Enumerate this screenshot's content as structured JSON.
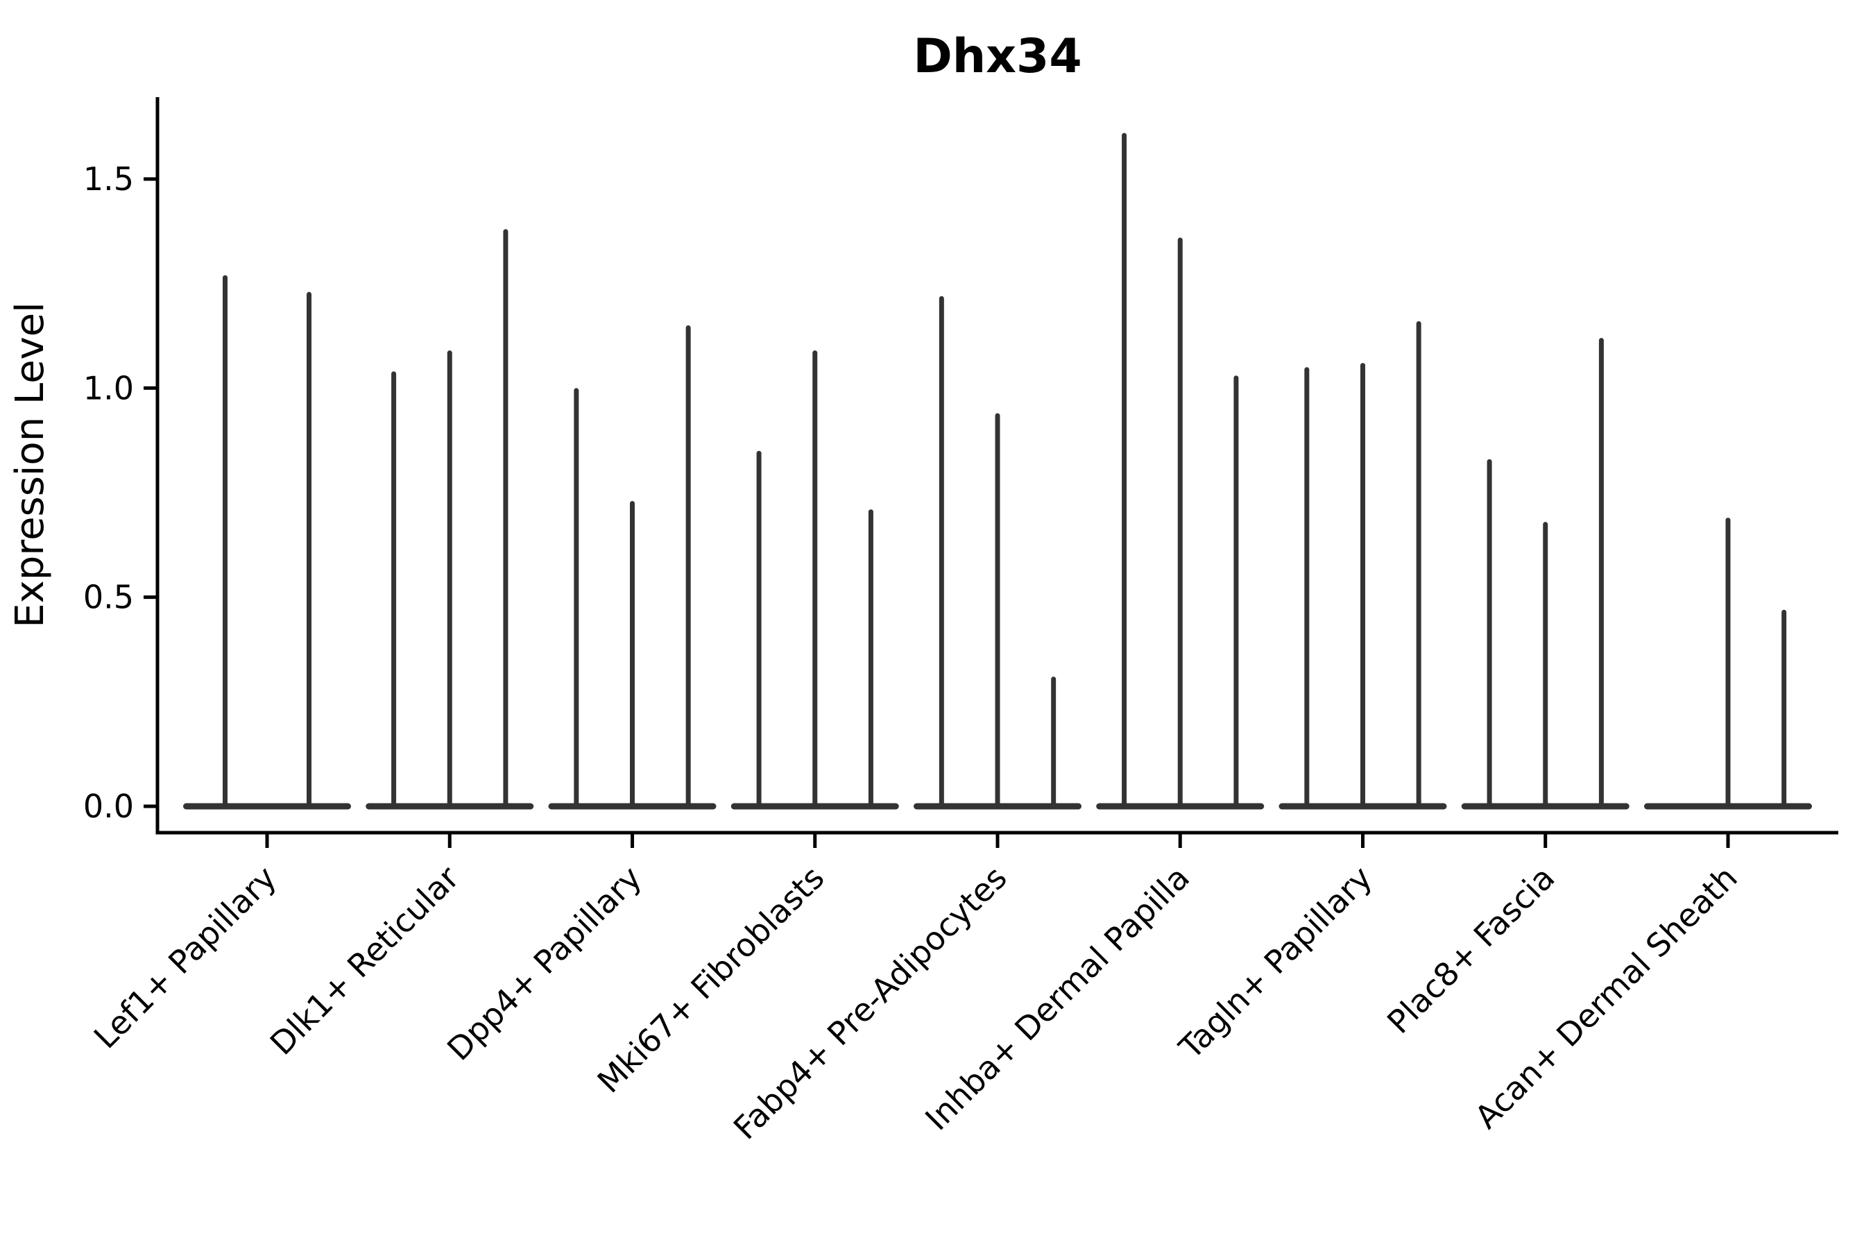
{
  "chart_data": {
    "type": "violin",
    "title": "Dhx34",
    "ylabel": "Expression Level",
    "xlabel": "",
    "ylim": [
      0,
      1.7
    ],
    "yticks": [
      "0.0",
      "0.5",
      "1.0",
      "1.5"
    ],
    "ytick_values": [
      0.0,
      0.5,
      1.0,
      1.5
    ],
    "grid": false,
    "legend": "none",
    "x_tick_rotation_deg": 45,
    "categories": [
      "Lef1+ Papillary",
      "Dlk1+ Reticular",
      "Dpp4+ Papillary",
      "Mki67+ Fibroblasts",
      "Fabp4+ Pre-Adipocytes",
      "Inhba+ Dermal Papilla",
      "Tagln+ Papillary",
      "Plac8+ Fascia",
      "Acan+ Dermal Sheath"
    ],
    "violin_peaks": [
      [
        1.27,
        1.23
      ],
      [
        1.04,
        1.09,
        1.38
      ],
      [
        1.0,
        0.73,
        1.15
      ],
      [
        0.85,
        1.09,
        0.71
      ],
      [
        1.22,
        0.94,
        0.31
      ],
      [
        1.61,
        1.36,
        1.03
      ],
      [
        1.05,
        1.06,
        1.16
      ],
      [
        0.83,
        0.68,
        1.12
      ],
      [
        0.0,
        0.69,
        0.47
      ]
    ],
    "colors": {
      "violin": "#333333",
      "axis": "#000000",
      "text": "#000000",
      "background": "#ffffff"
    }
  }
}
